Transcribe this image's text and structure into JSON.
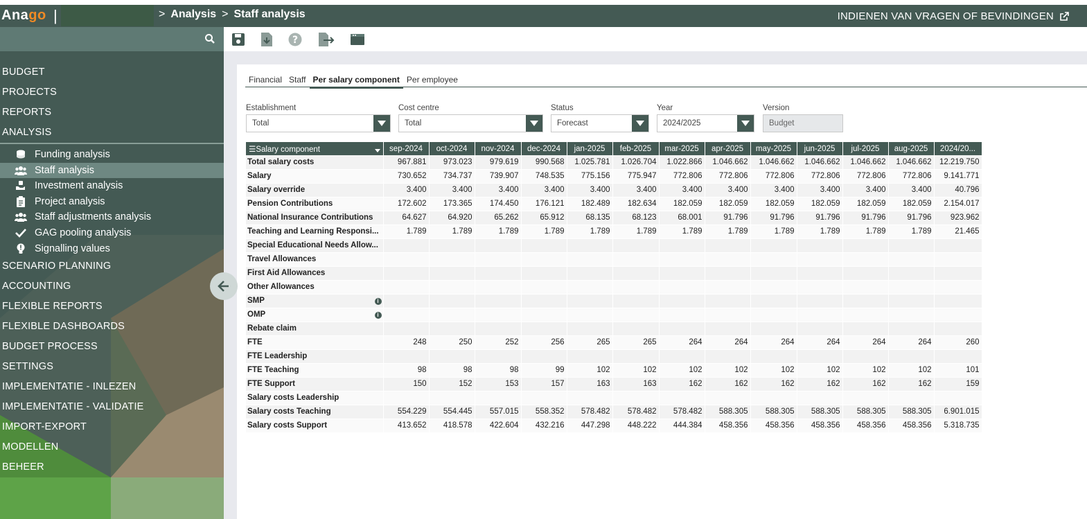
{
  "header": {
    "logo_prefix": "Ana",
    "logo_accent": "g",
    "logo_suffix": "o",
    "logo_separator": "|",
    "breadcrumb": [
      "Analysis",
      "Staff analysis"
    ],
    "breadcrumb_separator": ">",
    "feedback_link": "INDIENEN VAN VRAGEN OF BEVINDINGEN"
  },
  "sidebar": {
    "menu_top": [
      "BUDGET",
      "PROJECTS",
      "REPORTS",
      "ANALYSIS"
    ],
    "sub_items": [
      {
        "label": "Funding analysis",
        "icon": "coins-icon",
        "active": false
      },
      {
        "label": "Staff analysis",
        "icon": "users-icon",
        "active": true
      },
      {
        "label": "Investment analysis",
        "icon": "hand-coin-icon",
        "active": false
      },
      {
        "label": "Project analysis",
        "icon": "clipboard-icon",
        "active": false
      },
      {
        "label": "Staff adjustments analysis",
        "icon": "users-icon",
        "active": false
      },
      {
        "label": "GAG pooling analysis",
        "icon": "checkmark-icon",
        "active": false
      },
      {
        "label": "Signalling values",
        "icon": "alert-bulb-icon",
        "active": false
      }
    ],
    "menu_bottom": [
      "SCENARIO PLANNING",
      "ACCOUNTING",
      "FLEXIBLE REPORTS",
      "FLEXIBLE DASHBOARDS",
      "BUDGET PROCESS",
      "SETTINGS",
      "IMPLEMENTATIE - INLEZEN",
      "IMPLEMENTATIE - VALIDATIE",
      "IMPORT-EXPORT",
      "MODELLEN",
      "BEHEER"
    ]
  },
  "toolbar": [
    "save-icon",
    "download-icon",
    "help-icon",
    "export-icon",
    "window-icon"
  ],
  "tabs": [
    {
      "label": "Financial",
      "active": false
    },
    {
      "label": "Staff",
      "active": false
    },
    {
      "label": "Per salary component",
      "active": true
    },
    {
      "label": "Per employee",
      "active": false
    }
  ],
  "filters": {
    "establishment": {
      "label": "Establishment",
      "value": "Total"
    },
    "cost_centre": {
      "label": "Cost centre",
      "value": "Total"
    },
    "status": {
      "label": "Status",
      "value": "Forecast"
    },
    "year": {
      "label": "Year",
      "value": "2024/2025"
    },
    "version": {
      "label": "Version",
      "value": "Budget"
    }
  },
  "table": {
    "first_column_header": "Salary component",
    "columns": [
      "sep-2024",
      "oct-2024",
      "nov-2024",
      "dec-2024",
      "jan-2025",
      "feb-2025",
      "mar-2025",
      "apr-2025",
      "may-2025",
      "jun-2025",
      "jul-2025",
      "aug-2025",
      "2024/20..."
    ],
    "rows": [
      {
        "label": "Total salary costs",
        "values": [
          "967.881",
          "973.023",
          "979.619",
          "990.568",
          "1.025.781",
          "1.026.704",
          "1.022.866",
          "1.046.662",
          "1.046.662",
          "1.046.662",
          "1.046.662",
          "1.046.662",
          "12.219.750"
        ]
      },
      {
        "label": "Salary",
        "values": [
          "730.652",
          "734.737",
          "739.907",
          "748.535",
          "775.156",
          "775.947",
          "772.806",
          "772.806",
          "772.806",
          "772.806",
          "772.806",
          "772.806",
          "9.141.771"
        ]
      },
      {
        "label": "Salary override",
        "values": [
          "3.400",
          "3.400",
          "3.400",
          "3.400",
          "3.400",
          "3.400",
          "3.400",
          "3.400",
          "3.400",
          "3.400",
          "3.400",
          "3.400",
          "40.796"
        ]
      },
      {
        "label": "Pension Contributions",
        "values": [
          "172.602",
          "173.365",
          "174.450",
          "176.121",
          "182.489",
          "182.634",
          "182.059",
          "182.059",
          "182.059",
          "182.059",
          "182.059",
          "182.059",
          "2.154.017"
        ]
      },
      {
        "label": "National Insurance Contributions",
        "values": [
          "64.627",
          "64.920",
          "65.262",
          "65.912",
          "68.135",
          "68.123",
          "68.001",
          "91.796",
          "91.796",
          "91.796",
          "91.796",
          "91.796",
          "923.962"
        ]
      },
      {
        "label": "Teaching and Learning Responsi...",
        "values": [
          "1.789",
          "1.789",
          "1.789",
          "1.789",
          "1.789",
          "1.789",
          "1.789",
          "1.789",
          "1.789",
          "1.789",
          "1.789",
          "1.789",
          "21.465"
        ]
      },
      {
        "label": "Special Educational Needs Allow...",
        "values": [
          "",
          "",
          "",
          "",
          "",
          "",
          "",
          "",
          "",
          "",
          "",
          "",
          ""
        ]
      },
      {
        "label": "Travel Allowances",
        "values": [
          "",
          "",
          "",
          "",
          "",
          "",
          "",
          "",
          "",
          "",
          "",
          "",
          ""
        ]
      },
      {
        "label": "First Aid Allowances",
        "values": [
          "",
          "",
          "",
          "",
          "",
          "",
          "",
          "",
          "",
          "",
          "",
          "",
          ""
        ]
      },
      {
        "label": "Other Allowances",
        "values": [
          "",
          "",
          "",
          "",
          "",
          "",
          "",
          "",
          "",
          "",
          "",
          "",
          ""
        ]
      },
      {
        "label": "SMP",
        "info": true,
        "values": [
          "",
          "",
          "",
          "",
          "",
          "",
          "",
          "",
          "",
          "",
          "",
          "",
          ""
        ]
      },
      {
        "label": "OMP",
        "info": true,
        "values": [
          "",
          "",
          "",
          "",
          "",
          "",
          "",
          "",
          "",
          "",
          "",
          "",
          ""
        ]
      },
      {
        "label": "Rebate claim",
        "values": [
          "",
          "",
          "",
          "",
          "",
          "",
          "",
          "",
          "",
          "",
          "",
          "",
          ""
        ]
      },
      {
        "label": "FTE",
        "values": [
          "248",
          "250",
          "252",
          "256",
          "265",
          "265",
          "264",
          "264",
          "264",
          "264",
          "264",
          "264",
          "260"
        ]
      },
      {
        "label": "FTE Leadership",
        "values": [
          "",
          "",
          "",
          "",
          "",
          "",
          "",
          "",
          "",
          "",
          "",
          "",
          ""
        ]
      },
      {
        "label": "FTE Teaching",
        "values": [
          "98",
          "98",
          "98",
          "99",
          "102",
          "102",
          "102",
          "102",
          "102",
          "102",
          "102",
          "102",
          "101"
        ]
      },
      {
        "label": "FTE Support",
        "values": [
          "150",
          "152",
          "153",
          "157",
          "163",
          "163",
          "162",
          "162",
          "162",
          "162",
          "162",
          "162",
          "159"
        ]
      },
      {
        "label": "Salary costs Leadership",
        "values": [
          "",
          "",
          "",
          "",
          "",
          "",
          "",
          "",
          "",
          "",
          "",
          "",
          ""
        ]
      },
      {
        "label": "Salary costs Teaching",
        "values": [
          "554.229",
          "554.445",
          "557.015",
          "558.352",
          "578.482",
          "578.482",
          "578.482",
          "588.305",
          "588.305",
          "588.305",
          "588.305",
          "588.305",
          "6.901.015"
        ]
      },
      {
        "label": "Salary costs Support",
        "values": [
          "413.652",
          "418.578",
          "422.604",
          "432.216",
          "447.298",
          "448.222",
          "444.384",
          "458.356",
          "458.356",
          "458.356",
          "458.356",
          "458.356",
          "5.318.735"
        ]
      }
    ]
  },
  "colors": {
    "header_bg": "#445a54",
    "accent": "#f08a24",
    "active_item": "#6e8882"
  }
}
